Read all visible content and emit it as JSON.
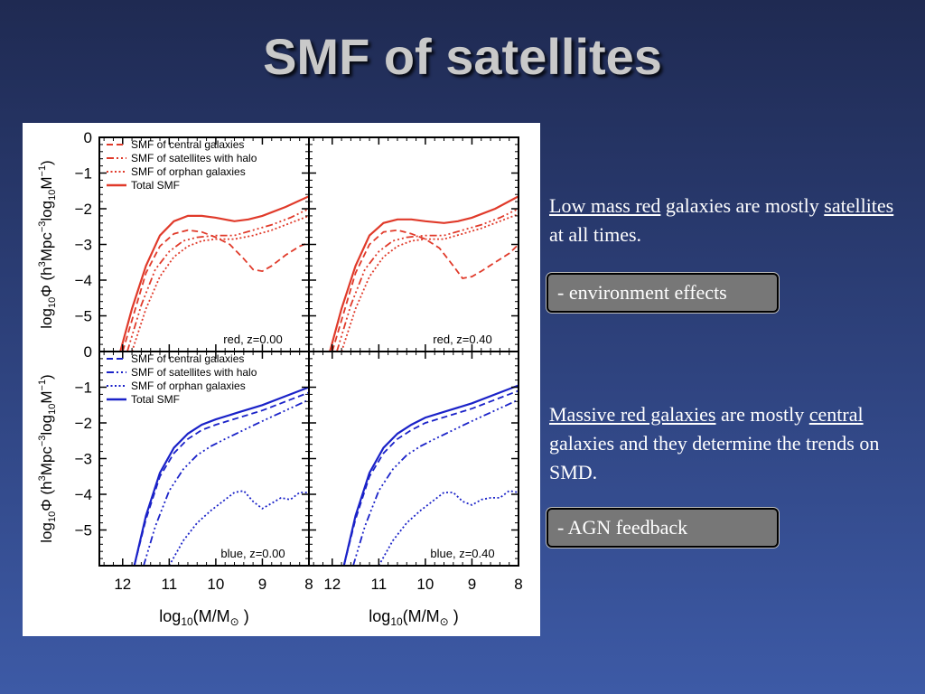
{
  "slide": {
    "title": "SMF of satellites",
    "note1": {
      "part1": "Low mass red",
      "part2": " galaxies are mostly ",
      "part3": "satellites",
      "part4": " at all times."
    },
    "box1": "- environment effects",
    "note2": {
      "part1": "Massive red galaxies",
      "part2": " are mostly ",
      "part3": "central",
      "part4": " galaxies and they determine the trends on SMD."
    },
    "box2": "- AGN feedback"
  },
  "colors": {
    "red": "#e03a2a",
    "blue": "#1a22c8"
  },
  "chart_data": {
    "type": "line",
    "xlim": [
      12.5,
      8
    ],
    "ylim": [
      -6,
      0
    ],
    "x_ticks": [
      12,
      11,
      10,
      9,
      8
    ],
    "y_ticks": [
      0,
      -1,
      -2,
      -3,
      -4,
      -5
    ],
    "x_tick_labels": [
      "12",
      "11",
      "10",
      "9",
      "8"
    ],
    "y_tick_labels": [
      "0",
      "−1",
      "−2",
      "−3",
      "−4",
      "−5"
    ],
    "xlabel_parts": {
      "main": "log",
      "sub": "10",
      "rest": "(M/M",
      "sym": "⊙",
      "end": " )"
    },
    "ylabel_parts": {
      "pre": "log",
      "sub1": "10",
      "phi": "Φ",
      "unit1": "  (h",
      "sup1": "3",
      "unit2": "Mpc",
      "sup2": "−3",
      "unit3": "log",
      "sub2": "10",
      "unit4": "M",
      "sup3": "−1",
      "unit5": ")"
    },
    "legend_red": [
      "SMF of central galaxies",
      "SMF of satellites with halo",
      "SMF of orphan galaxies",
      "Total SMF"
    ],
    "legend_blue": [
      "SMF of central galaxies",
      "SMF of satellites with halo",
      "SMF of orphan galaxies",
      "Total SMF"
    ],
    "panels": [
      {
        "label": "red,  z=0.00",
        "color": "red",
        "series": [
          {
            "style": "total",
            "x": [
              12.05,
              11.8,
              11.5,
              11.2,
              10.9,
              10.6,
              10.3,
              10.0,
              9.6,
              9.3,
              9.0,
              8.5,
              8.0
            ],
            "y": [
              -6,
              -4.8,
              -3.6,
              -2.75,
              -2.35,
              -2.2,
              -2.2,
              -2.25,
              -2.35,
              -2.3,
              -2.2,
              -1.95,
              -1.65
            ]
          },
          {
            "style": "central",
            "x": [
              12.0,
              11.75,
              11.5,
              11.2,
              10.9,
              10.6,
              10.3,
              10.0,
              9.7,
              9.4,
              9.2,
              9.0,
              8.8,
              8.5,
              8.2,
              8.0
            ],
            "y": [
              -6,
              -4.9,
              -3.8,
              -3.05,
              -2.7,
              -2.6,
              -2.65,
              -2.8,
              -3.0,
              -3.4,
              -3.7,
              -3.75,
              -3.6,
              -3.3,
              -3.05,
              -2.95
            ]
          },
          {
            "style": "satellite",
            "x": [
              11.9,
              11.6,
              11.3,
              11.0,
              10.7,
              10.4,
              10.0,
              9.6,
              9.2,
              8.8,
              8.4,
              8.0
            ],
            "y": [
              -6,
              -4.7,
              -3.7,
              -3.2,
              -2.9,
              -2.8,
              -2.75,
              -2.75,
              -2.6,
              -2.45,
              -2.25,
              -2.0
            ]
          },
          {
            "style": "orphan",
            "x": [
              11.8,
              11.5,
              11.2,
              10.9,
              10.6,
              10.3,
              10.0,
              9.6,
              9.2,
              8.8,
              8.4,
              8.0
            ],
            "y": [
              -6,
              -4.8,
              -3.9,
              -3.35,
              -3.05,
              -2.9,
              -2.85,
              -2.85,
              -2.75,
              -2.6,
              -2.4,
              -2.2
            ]
          }
        ]
      },
      {
        "label": "red,  z=0.40",
        "color": "red",
        "series": [
          {
            "style": "total",
            "x": [
              12.05,
              11.8,
              11.5,
              11.2,
              10.9,
              10.6,
              10.3,
              10.0,
              9.6,
              9.3,
              9.0,
              8.5,
              8.0
            ],
            "y": [
              -6,
              -4.8,
              -3.6,
              -2.75,
              -2.4,
              -2.3,
              -2.3,
              -2.35,
              -2.4,
              -2.35,
              -2.25,
              -2.0,
              -1.65
            ]
          },
          {
            "style": "central",
            "x": [
              12.0,
              11.75,
              11.5,
              11.2,
              10.9,
              10.6,
              10.3,
              10.0,
              9.7,
              9.4,
              9.2,
              9.0,
              8.8,
              8.5,
              8.2,
              8.0
            ],
            "y": [
              -6,
              -4.9,
              -3.8,
              -3.0,
              -2.65,
              -2.6,
              -2.7,
              -2.85,
              -3.1,
              -3.6,
              -3.95,
              -3.9,
              -3.75,
              -3.5,
              -3.25,
              -3.0
            ]
          },
          {
            "style": "satellite",
            "x": [
              11.9,
              11.6,
              11.3,
              11.0,
              10.7,
              10.4,
              10.0,
              9.6,
              9.2,
              8.8,
              8.4,
              8.0
            ],
            "y": [
              -6,
              -4.7,
              -3.7,
              -3.2,
              -2.9,
              -2.8,
              -2.75,
              -2.75,
              -2.6,
              -2.45,
              -2.25,
              -2.0
            ]
          },
          {
            "style": "orphan",
            "x": [
              11.8,
              11.5,
              11.2,
              10.9,
              10.6,
              10.3,
              10.0,
              9.6,
              9.2,
              8.8,
              8.4,
              8.0
            ],
            "y": [
              -6,
              -4.8,
              -3.9,
              -3.35,
              -3.05,
              -2.9,
              -2.85,
              -2.85,
              -2.7,
              -2.55,
              -2.35,
              -2.15
            ]
          }
        ]
      },
      {
        "label": "blue,  z=0.00",
        "color": "blue",
        "series": [
          {
            "style": "total",
            "x": [
              11.75,
              11.5,
              11.2,
              10.9,
              10.6,
              10.3,
              10.0,
              9.5,
              9.0,
              8.5,
              8.0
            ],
            "y": [
              -6,
              -4.6,
              -3.4,
              -2.7,
              -2.3,
              -2.05,
              -1.9,
              -1.7,
              -1.5,
              -1.25,
              -1.0
            ]
          },
          {
            "style": "central",
            "x": [
              11.75,
              11.5,
              11.2,
              10.9,
              10.6,
              10.3,
              10.0,
              9.5,
              9.0,
              8.5,
              8.0
            ],
            "y": [
              -6,
              -4.7,
              -3.5,
              -2.85,
              -2.45,
              -2.2,
              -2.05,
              -1.85,
              -1.65,
              -1.4,
              -1.15
            ]
          },
          {
            "style": "satellite",
            "x": [
              11.55,
              11.3,
              11.0,
              10.7,
              10.4,
              10.1,
              9.8,
              9.4,
              9.0,
              8.5,
              8.0
            ],
            "y": [
              -6,
              -4.9,
              -3.9,
              -3.3,
              -2.9,
              -2.65,
              -2.45,
              -2.2,
              -1.95,
              -1.65,
              -1.35
            ]
          },
          {
            "style": "orphan",
            "x": [
              11.0,
              10.7,
              10.4,
              10.1,
              9.8,
              9.6,
              9.4,
              9.2,
              9.0,
              8.8,
              8.6,
              8.4,
              8.2,
              8.0
            ],
            "y": [
              -6,
              -5.3,
              -4.8,
              -4.45,
              -4.15,
              -3.95,
              -3.9,
              -4.2,
              -4.4,
              -4.25,
              -4.1,
              -4.15,
              -3.95,
              -3.95
            ]
          }
        ]
      },
      {
        "label": "blue,  z=0.40",
        "color": "blue",
        "series": [
          {
            "style": "total",
            "x": [
              11.75,
              11.5,
              11.2,
              10.9,
              10.6,
              10.3,
              10.0,
              9.5,
              9.0,
              8.5,
              8.0
            ],
            "y": [
              -6,
              -4.6,
              -3.4,
              -2.7,
              -2.3,
              -2.05,
              -1.85,
              -1.65,
              -1.45,
              -1.2,
              -0.95
            ]
          },
          {
            "style": "central",
            "x": [
              11.75,
              11.5,
              11.2,
              10.9,
              10.6,
              10.3,
              10.0,
              9.5,
              9.0,
              8.5,
              8.0
            ],
            "y": [
              -6,
              -4.7,
              -3.5,
              -2.85,
              -2.45,
              -2.2,
              -2.0,
              -1.8,
              -1.6,
              -1.35,
              -1.1
            ]
          },
          {
            "style": "satellite",
            "x": [
              11.55,
              11.3,
              11.0,
              10.7,
              10.4,
              10.1,
              9.8,
              9.4,
              9.0,
              8.5,
              8.0
            ],
            "y": [
              -6,
              -4.9,
              -3.9,
              -3.3,
              -2.9,
              -2.65,
              -2.45,
              -2.2,
              -1.95,
              -1.65,
              -1.35
            ]
          },
          {
            "style": "orphan",
            "x": [
              11.0,
              10.7,
              10.4,
              10.1,
              9.8,
              9.6,
              9.4,
              9.2,
              9.0,
              8.8,
              8.6,
              8.4,
              8.2,
              8.0
            ],
            "y": [
              -6,
              -5.3,
              -4.8,
              -4.45,
              -4.15,
              -3.95,
              -3.95,
              -4.2,
              -4.3,
              -4.15,
              -4.1,
              -4.1,
              -3.9,
              -3.95
            ]
          }
        ]
      }
    ]
  }
}
